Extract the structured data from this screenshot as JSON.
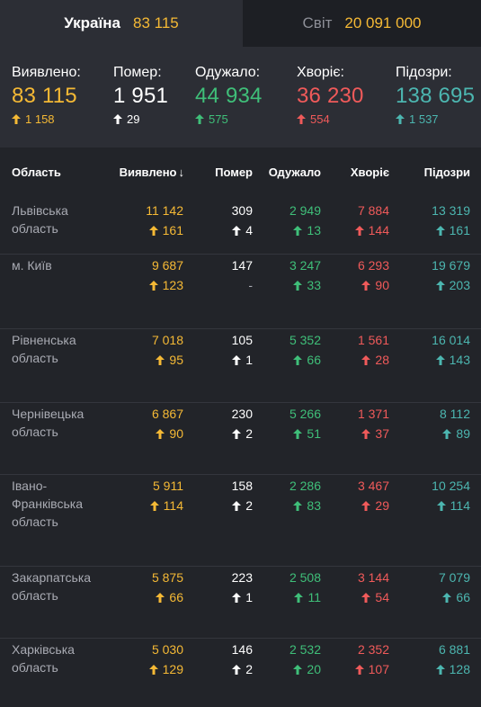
{
  "tabs": [
    {
      "label": "Україна",
      "value": "83 115",
      "active": true
    },
    {
      "label": "Світ",
      "value": "20 091 000",
      "active": false
    }
  ],
  "summary": [
    {
      "label": "Виявлено:",
      "value": "83 115",
      "delta": "1 158",
      "color": "#f5b935"
    },
    {
      "label": "Помер:",
      "value": "1 951",
      "delta": "29",
      "color": "#ffffff"
    },
    {
      "label": "Одужало:",
      "value": "44 934",
      "delta": "575",
      "color": "#3fbf79"
    },
    {
      "label": "Хворіє:",
      "value": "36 230",
      "delta": "554",
      "color": "#f05a5a"
    },
    {
      "label": "Підозри:",
      "value": "138 695",
      "delta": "1 537",
      "color": "#4cb6b0"
    }
  ],
  "table": {
    "headers": [
      "Область",
      "Виявлено",
      "Помер",
      "Одужало",
      "Хворіє",
      "Підозри"
    ],
    "sort_icon": "↓",
    "rows": [
      {
        "name": [
          "Львівська",
          "область"
        ],
        "detected": "11 142",
        "detected_d": "161",
        "died": "309",
        "died_d": "4",
        "recovered": "2 949",
        "recovered_d": "13",
        "sick": "7 884",
        "sick_d": "144",
        "suspected": "13 319",
        "suspected_d": "161"
      },
      {
        "name": [
          "м. Київ"
        ],
        "detected": "9 687",
        "detected_d": "123",
        "died": "147",
        "died_d": "-",
        "recovered": "3 247",
        "recovered_d": "33",
        "sick": "6 293",
        "sick_d": "90",
        "suspected": "19 679",
        "suspected_d": "203"
      },
      {
        "name": [
          "Рівненська",
          "область"
        ],
        "detected": "7 018",
        "detected_d": "95",
        "died": "105",
        "died_d": "1",
        "recovered": "5 352",
        "recovered_d": "66",
        "sick": "1 561",
        "sick_d": "28",
        "suspected": "16 014",
        "suspected_d": "143"
      },
      {
        "name": [
          "Чернівецька",
          "область"
        ],
        "detected": "6 867",
        "detected_d": "90",
        "died": "230",
        "died_d": "2",
        "recovered": "5 266",
        "recovered_d": "51",
        "sick": "1 371",
        "sick_d": "37",
        "suspected": "8 112",
        "suspected_d": "89"
      },
      {
        "name": [
          "Івано-",
          "Франківська",
          "область"
        ],
        "detected": "5 911",
        "detected_d": "114",
        "died": "158",
        "died_d": "2",
        "recovered": "2 286",
        "recovered_d": "83",
        "sick": "3 467",
        "sick_d": "29",
        "suspected": "10 254",
        "suspected_d": "114"
      },
      {
        "name": [
          "Закарпатська",
          "область"
        ],
        "detected": "5 875",
        "detected_d": "66",
        "died": "223",
        "died_d": "1",
        "recovered": "2 508",
        "recovered_d": "11",
        "sick": "3 144",
        "sick_d": "54",
        "suspected": "7 079",
        "suspected_d": "66"
      },
      {
        "name": [
          "Харківська",
          "область"
        ],
        "detected": "5 030",
        "detected_d": "129",
        "died": "146",
        "died_d": "2",
        "recovered": "2 532",
        "recovered_d": "20",
        "sick": "2 352",
        "sick_d": "107",
        "suspected": "6 881",
        "suspected_d": "128"
      }
    ]
  },
  "colors": {
    "yellow": "#f5b935",
    "white": "#ffffff",
    "green": "#3fbf79",
    "red": "#f05a5a",
    "teal": "#4cb6b0"
  },
  "icons": {
    "delta": "arrow-up-icon",
    "sort": "arrow-down-icon"
  }
}
